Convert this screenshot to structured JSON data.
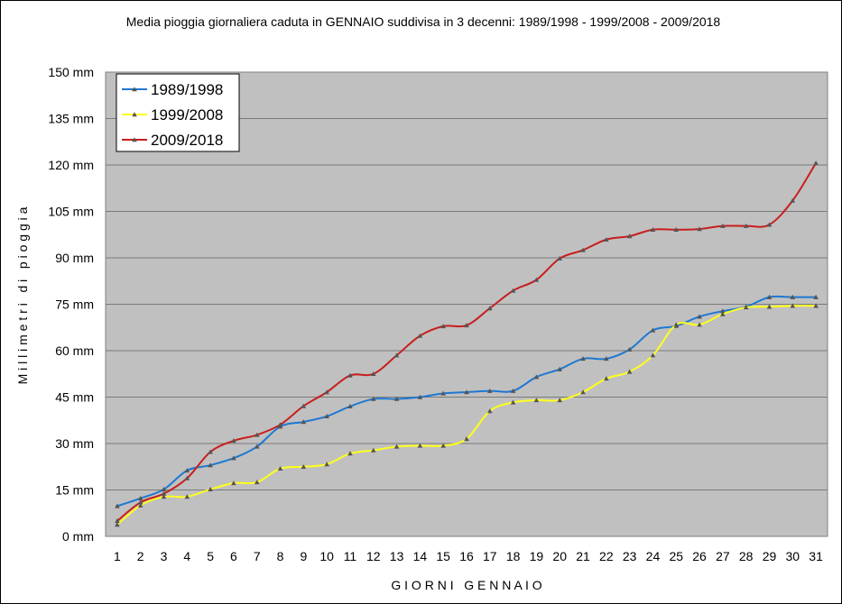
{
  "chart_data": {
    "type": "line",
    "title": "Media pioggia giornaliera caduta in GENNAIO suddivisa in 3 decenni: 1989/1998 - 1999/2008 - 2009/2018",
    "xlabel": "G I O R N I   G E N N A I O",
    "ylabel": "M i l l i m e t r i   d i   p i o g g i a",
    "x": [
      1,
      2,
      3,
      4,
      5,
      6,
      7,
      8,
      9,
      10,
      11,
      12,
      13,
      14,
      15,
      16,
      17,
      18,
      19,
      20,
      21,
      22,
      23,
      24,
      25,
      26,
      27,
      28,
      29,
      30,
      31
    ],
    "ylim": [
      0,
      150
    ],
    "yticks": [
      0,
      15,
      30,
      45,
      60,
      75,
      90,
      105,
      120,
      135,
      150
    ],
    "ytick_labels": [
      "0 mm",
      "15 mm",
      "30 mm",
      "45 mm",
      "60 mm",
      "75 mm",
      "90 mm",
      "105 mm",
      "120 mm",
      "135 mm",
      "150 mm"
    ],
    "grid": true,
    "legend_position": "top-left",
    "plot_background": "#c0c0c0",
    "series": [
      {
        "name": "1989/1998",
        "color": "#1e78d2",
        "values": [
          9.8,
          12.3,
          15.2,
          21.3,
          23.0,
          25.3,
          29.0,
          35.5,
          37.0,
          38.8,
          42.0,
          44.4,
          44.4,
          45.0,
          46.2,
          46.6,
          47.0,
          47.0,
          51.5,
          54.0,
          57.4,
          57.4,
          60.4,
          66.6,
          68.0,
          71.0,
          72.8,
          74.2,
          77.3,
          77.3,
          77.3
        ]
      },
      {
        "name": "1999/2008",
        "color": "#ffff1e",
        "values": [
          3.8,
          10.0,
          12.8,
          12.8,
          15.2,
          17.2,
          17.5,
          21.9,
          22.5,
          23.3,
          26.8,
          27.8,
          29.0,
          29.3,
          29.3,
          31.5,
          40.5,
          43.3,
          44.0,
          44.0,
          46.6,
          51.0,
          53.2,
          58.5,
          68.4,
          68.4,
          71.8,
          74.0,
          74.2,
          74.5,
          74.5
        ]
      },
      {
        "name": "2009/2018",
        "color": "#c81e1e",
        "values": [
          5.0,
          11.0,
          13.8,
          18.8,
          27.3,
          30.9,
          32.8,
          36.1,
          42.1,
          46.6,
          52.0,
          52.5,
          58.5,
          64.8,
          67.9,
          68.2,
          73.7,
          79.4,
          82.9,
          89.8,
          92.5,
          95.9,
          97.0,
          99.1,
          99.1,
          99.3,
          100.3,
          100.3,
          100.7,
          108.5,
          120.6
        ]
      }
    ]
  }
}
